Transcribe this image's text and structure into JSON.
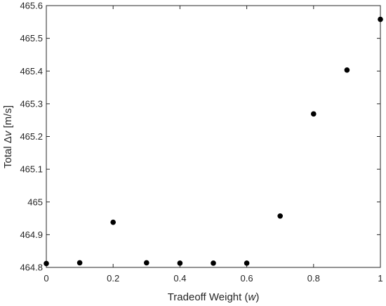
{
  "chart_data": {
    "type": "scatter",
    "title": "",
    "xlabel_prefix": "Tradeoff Weight (",
    "xlabel_var": "w",
    "xlabel_suffix": ")",
    "ylabel_prefix": "Total  Δ",
    "ylabel_var": "v",
    "ylabel_suffix": " [m/s]",
    "xlim": [
      0,
      1
    ],
    "ylim": [
      464.8,
      465.6
    ],
    "xticks": [
      "0",
      "0.2",
      "0.4",
      "0.6",
      "0.8",
      "1"
    ],
    "yticks": [
      "464.8",
      "464.9",
      "465",
      "465.1",
      "465.2",
      "465.3",
      "465.4",
      "465.5",
      "465.6"
    ],
    "grid": false,
    "marker_color": "#000000",
    "axis_color": "#262626",
    "series": [
      {
        "x": [
          0,
          0.1,
          0.2,
          0.3,
          0.4,
          0.5,
          0.6,
          0.7,
          0.8,
          0.9,
          1.0
        ],
        "y": [
          464.812,
          464.814,
          464.938,
          464.814,
          464.813,
          464.813,
          464.813,
          464.957,
          465.269,
          465.403,
          465.558
        ]
      }
    ]
  }
}
